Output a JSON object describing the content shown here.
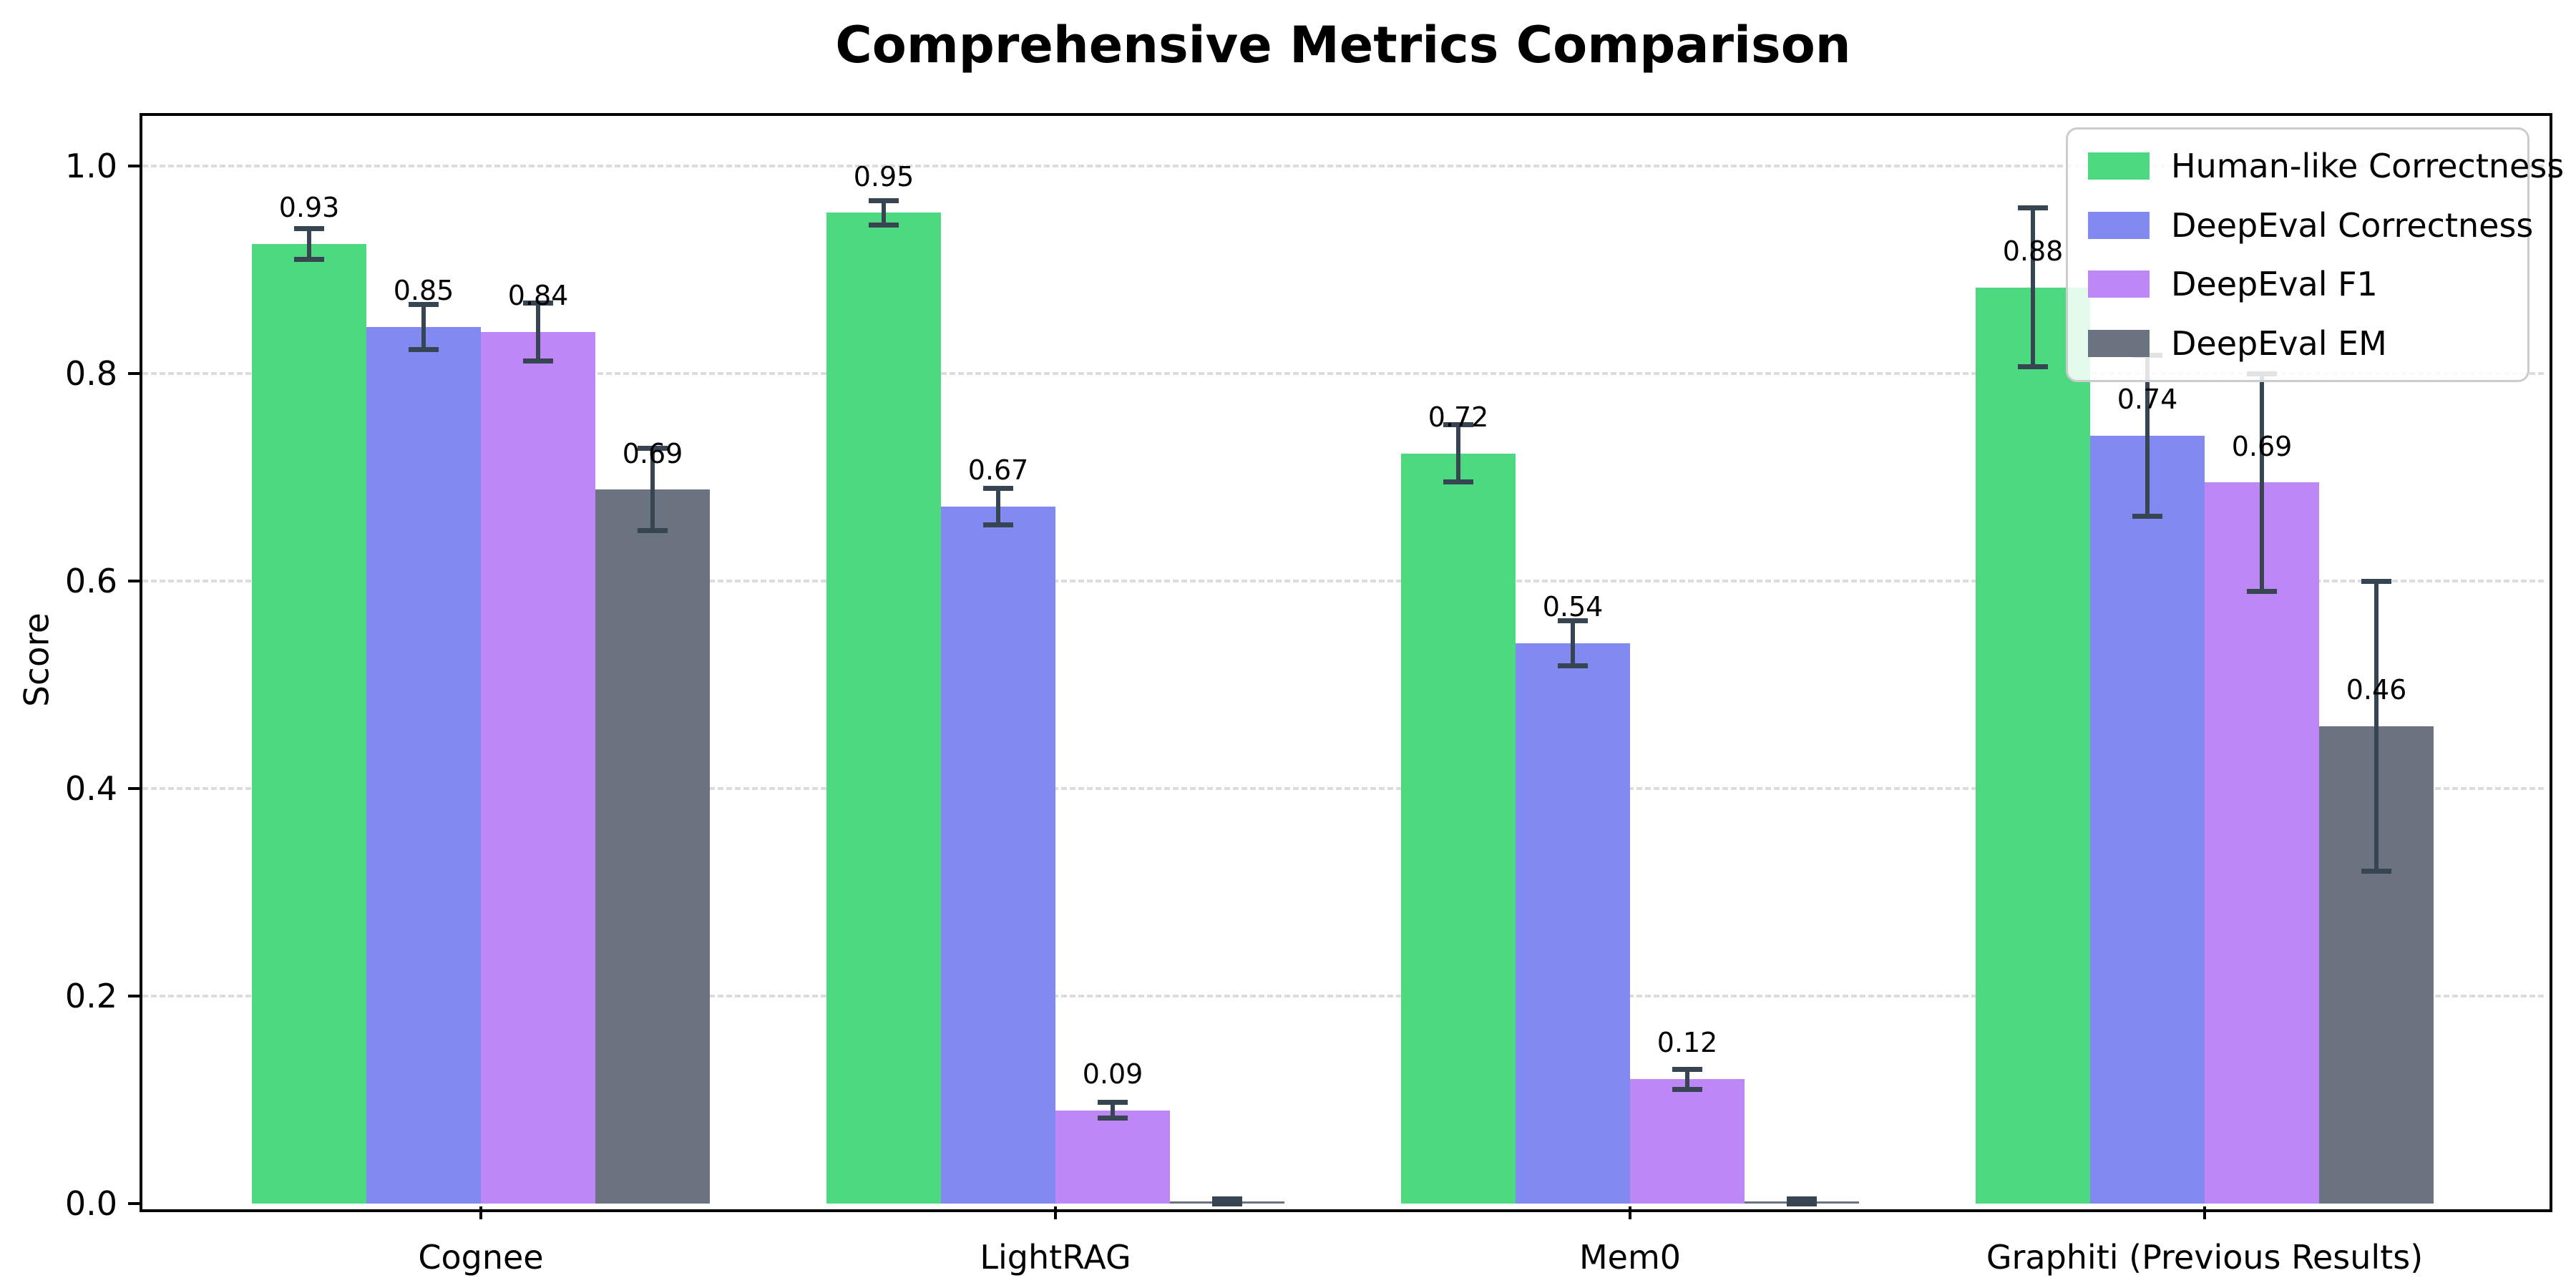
{
  "chart_data": {
    "type": "bar",
    "title": "Comprehensive Metrics Comparison",
    "ylabel": "Score",
    "xlabel": "",
    "categories": [
      "Cognee",
      "LightRAG",
      "Mem0",
      "Graphiti (Previous Results)"
    ],
    "series": [
      {
        "name": "Human-like Correctness",
        "color": "#4dd97f",
        "values": [
          0.925,
          0.955,
          0.723,
          0.883
        ],
        "errors": [
          0.015,
          0.012,
          0.028,
          0.077
        ],
        "labels": [
          "0.93",
          "0.95",
          "0.72",
          "0.88"
        ]
      },
      {
        "name": "DeepEval Correctness",
        "color": "#8289f0",
        "values": [
          0.845,
          0.672,
          0.54,
          0.74
        ],
        "errors": [
          0.022,
          0.018,
          0.022,
          0.078
        ],
        "labels": [
          "0.85",
          "0.67",
          "0.54",
          "0.74"
        ]
      },
      {
        "name": "DeepEval F1",
        "color": "#bd87f5",
        "values": [
          0.84,
          0.09,
          0.12,
          0.695
        ],
        "errors": [
          0.028,
          0.008,
          0.01,
          0.105
        ],
        "labels": [
          "0.84",
          "0.09",
          "0.12",
          "0.69"
        ]
      },
      {
        "name": "DeepEval EM",
        "color": "#6b7280",
        "values": [
          0.688,
          0.002,
          0.002,
          0.46
        ],
        "errors": [
          0.04,
          0.003,
          0.003,
          0.14
        ],
        "labels": [
          "0.69",
          "",
          "",
          "0.46"
        ]
      }
    ],
    "y_ticks": [
      0.0,
      0.2,
      0.4,
      0.6,
      0.8,
      1.0
    ],
    "y_tick_labels": [
      "0.0",
      "0.2",
      "0.4",
      "0.6",
      "0.8",
      "1.0"
    ],
    "ylim": [
      0,
      1.048
    ],
    "grid": {
      "axis": "y",
      "style": "dashed",
      "color": "#dcdcdc"
    },
    "legend_position": "upper right",
    "error_bar_color": "#374553",
    "background_color": "#ffffff"
  }
}
